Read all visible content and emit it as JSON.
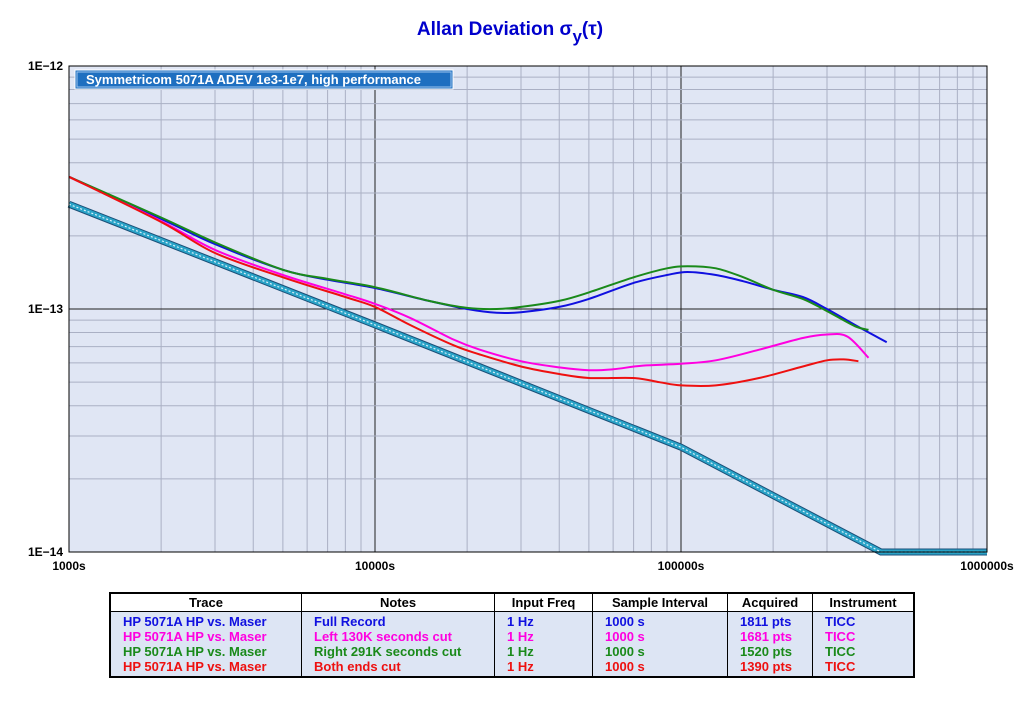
{
  "chart_data": {
    "type": "line",
    "title": "Allan Deviation σ",
    "title_sub": "y",
    "title_suffix": "(τ)",
    "x_scale": "log",
    "y_scale": "log",
    "xlim": [
      1000,
      1000000
    ],
    "ylim": [
      1e-14,
      1e-12
    ],
    "x_tick_labels": [
      {
        "value": 1000,
        "label": "1000s"
      },
      {
        "value": 10000,
        "label": "10000s"
      },
      {
        "value": 100000,
        "label": "100000s"
      },
      {
        "value": 1000000,
        "label": "1000000s"
      }
    ],
    "y_tick_labels": [
      {
        "value": 1e-12,
        "label": "1E−12"
      },
      {
        "value": 1e-13,
        "label": "1E−13"
      },
      {
        "value": 1e-14,
        "label": "1E−14"
      }
    ],
    "grid": true,
    "annotation": "Symmetricom 5071A ADEV 1e3-1e7, high performance",
    "reference_line": {
      "name": "",
      "color": "#29a3c7",
      "points": [
        [
          1000,
          2.7e-13
        ],
        [
          10000,
          8.6e-14
        ],
        [
          100000,
          2.7e-14
        ],
        [
          450000,
          1e-14
        ],
        [
          1000000,
          1e-14
        ]
      ]
    },
    "series": [
      {
        "color": "#1010e0",
        "points": [
          [
            1000,
            3.5e-13
          ],
          [
            2000,
            2.35e-13
          ],
          [
            3000,
            1.85e-13
          ],
          [
            5000,
            1.45e-13
          ],
          [
            7000,
            1.32e-13
          ],
          [
            10000,
            1.22e-13
          ],
          [
            15000,
            1.08e-13
          ],
          [
            20000,
            1e-13
          ],
          [
            25000,
            9.65e-14
          ],
          [
            30000,
            9.7e-14
          ],
          [
            40000,
            1.02e-13
          ],
          [
            50000,
            1.1e-13
          ],
          [
            70000,
            1.28e-13
          ],
          [
            90000,
            1.38e-13
          ],
          [
            105000,
            1.42e-13
          ],
          [
            130000,
            1.38e-13
          ],
          [
            160000,
            1.3e-13
          ],
          [
            200000,
            1.2e-13
          ],
          [
            250000,
            1.12e-13
          ],
          [
            300000,
            1e-13
          ],
          [
            370000,
            8.6e-14
          ],
          [
            470000,
            7.3e-14
          ]
        ]
      },
      {
        "color": "#ff00e0",
        "points": [
          [
            1000,
            3.5e-13
          ],
          [
            2000,
            2.3e-13
          ],
          [
            3000,
            1.75e-13
          ],
          [
            5000,
            1.38e-13
          ],
          [
            8000,
            1.15e-13
          ],
          [
            10000,
            1.05e-13
          ],
          [
            13000,
            9.2e-14
          ],
          [
            18000,
            7.5e-14
          ],
          [
            22000,
            6.8e-14
          ],
          [
            30000,
            6.1e-14
          ],
          [
            40000,
            5.75e-14
          ],
          [
            50000,
            5.6e-14
          ],
          [
            60000,
            5.65e-14
          ],
          [
            75000,
            5.85e-14
          ],
          [
            100000,
            5.95e-14
          ],
          [
            130000,
            6.15e-14
          ],
          [
            180000,
            6.8e-14
          ],
          [
            250000,
            7.6e-14
          ],
          [
            300000,
            7.85e-14
          ],
          [
            350000,
            7.7e-14
          ],
          [
            410000,
            6.3e-14
          ]
        ]
      },
      {
        "color": "#1a8a1a",
        "points": [
          [
            1000,
            3.5e-13
          ],
          [
            2000,
            2.38e-13
          ],
          [
            3000,
            1.88e-13
          ],
          [
            5000,
            1.45e-13
          ],
          [
            7000,
            1.33e-13
          ],
          [
            10000,
            1.23e-13
          ],
          [
            15000,
            1.08e-13
          ],
          [
            20000,
            1.01e-13
          ],
          [
            25000,
            1e-13
          ],
          [
            30000,
            1.02e-13
          ],
          [
            40000,
            1.08e-13
          ],
          [
            50000,
            1.17e-13
          ],
          [
            70000,
            1.35e-13
          ],
          [
            90000,
            1.47e-13
          ],
          [
            105000,
            1.5e-13
          ],
          [
            130000,
            1.47e-13
          ],
          [
            160000,
            1.35e-13
          ],
          [
            200000,
            1.2e-13
          ],
          [
            250000,
            1.1e-13
          ],
          [
            300000,
            9.8e-14
          ],
          [
            370000,
            8.5e-14
          ],
          [
            410000,
            8.2e-14
          ]
        ]
      },
      {
        "color": "#ee1010",
        "points": [
          [
            1000,
            3.5e-13
          ],
          [
            2000,
            2.28e-13
          ],
          [
            3000,
            1.7e-13
          ],
          [
            5000,
            1.35e-13
          ],
          [
            8000,
            1.12e-13
          ],
          [
            10000,
            1.02e-13
          ],
          [
            13000,
            8.6e-14
          ],
          [
            18000,
            7.1e-14
          ],
          [
            22000,
            6.5e-14
          ],
          [
            30000,
            5.8e-14
          ],
          [
            40000,
            5.4e-14
          ],
          [
            50000,
            5.2e-14
          ],
          [
            70000,
            5.2e-14
          ],
          [
            85000,
            5e-14
          ],
          [
            100000,
            4.85e-14
          ],
          [
            130000,
            4.85e-14
          ],
          [
            180000,
            5.2e-14
          ],
          [
            250000,
            5.8e-14
          ],
          [
            300000,
            6.15e-14
          ],
          [
            340000,
            6.2e-14
          ],
          [
            380000,
            6.1e-14
          ]
        ]
      }
    ],
    "table": {
      "headers": [
        "Trace",
        "Notes",
        "Input Freq",
        "Sample Interval",
        "Acquired",
        "Instrument"
      ],
      "rows": [
        {
          "color": "#1010e0",
          "cells": [
            "HP 5071A HP vs. Maser",
            "Full Record",
            "1 Hz",
            "1000 s",
            "1811 pts",
            "TICC"
          ]
        },
        {
          "color": "#ff00e0",
          "cells": [
            "HP 5071A HP vs. Maser",
            "Left 130K seconds cut",
            "1 Hz",
            "1000 s",
            "1681 pts",
            "TICC"
          ]
        },
        {
          "color": "#1a8a1a",
          "cells": [
            "HP 5071A HP vs. Maser",
            "Right 291K seconds cut",
            "1 Hz",
            "1000 s",
            "1520 pts",
            "TICC"
          ]
        },
        {
          "color": "#ee1010",
          "cells": [
            "HP 5071A HP vs. Maser",
            "Both ends cut",
            "1 Hz",
            "1000 s",
            "1390 pts",
            "TICC"
          ]
        }
      ]
    }
  }
}
